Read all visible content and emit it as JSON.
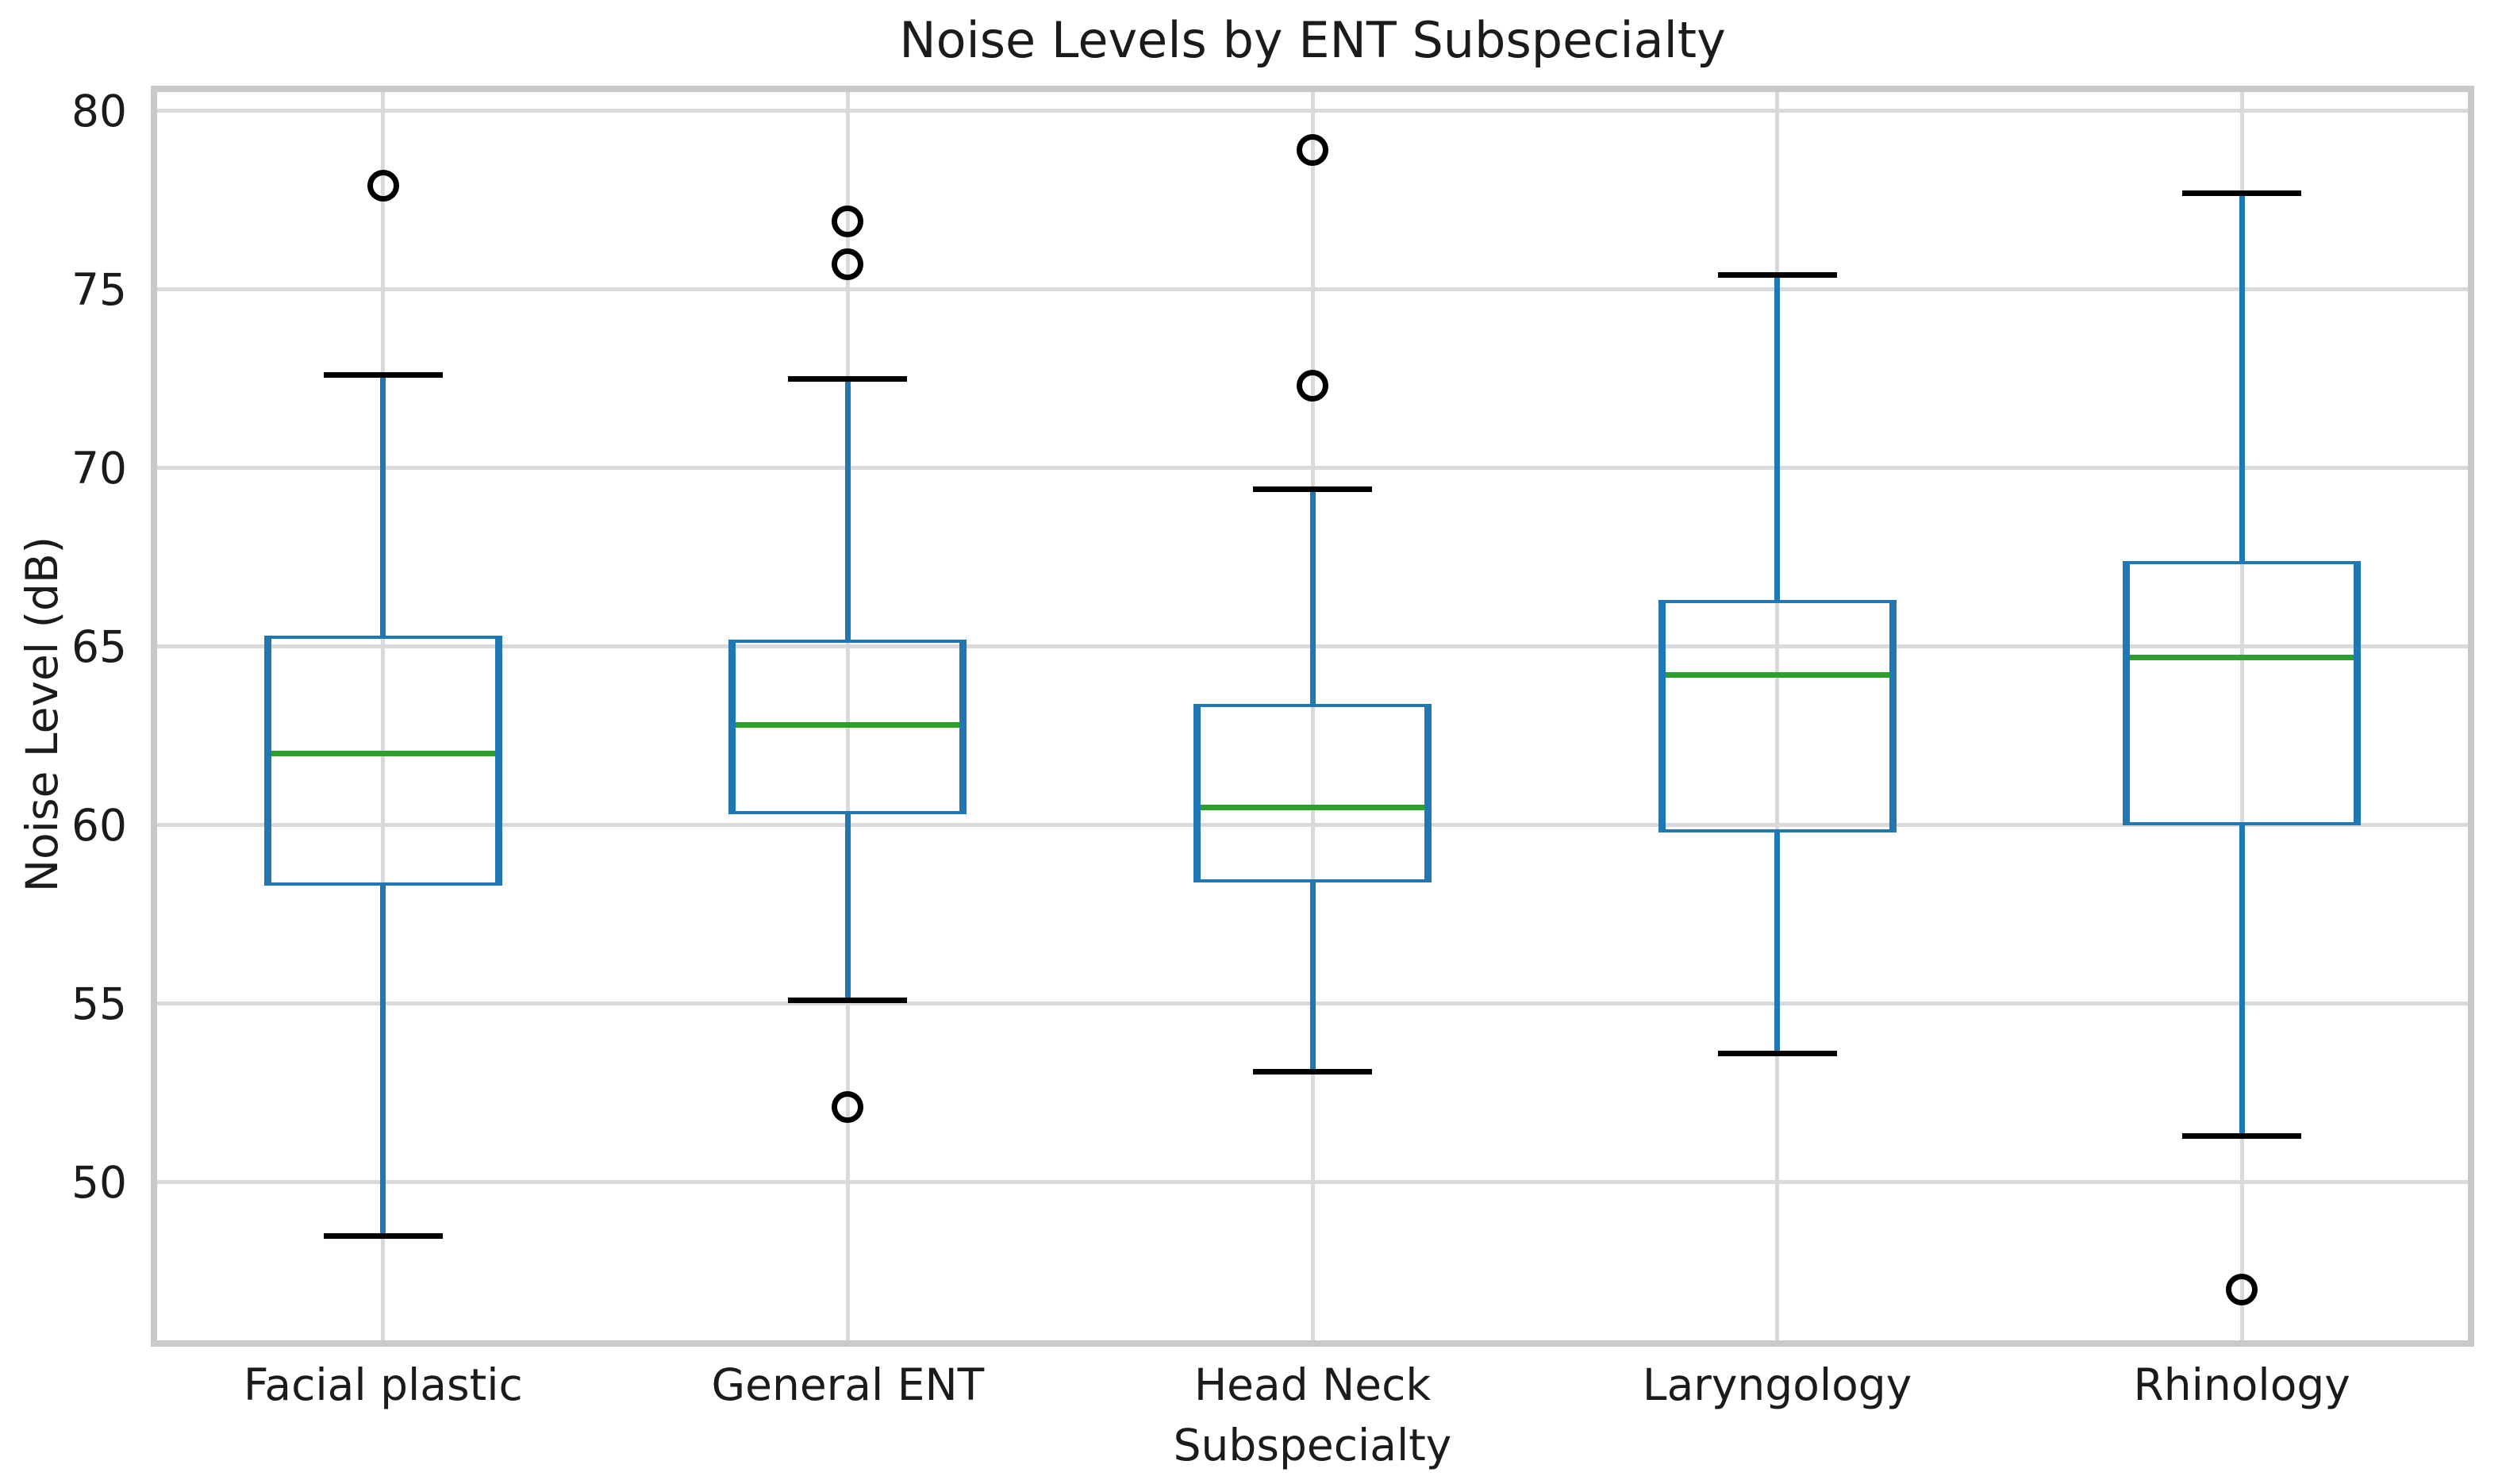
{
  "title": "Noise Levels by ENT Subspecialty",
  "x_axis_label": "Subspecialty",
  "y_axis_label": "Noise Level (dB)",
  "colors": {
    "box_edge": "#1f77b4",
    "whisker": "#1f77b4",
    "cap": "#000000",
    "median": "#2ca02c",
    "outlier_edge": "#000000",
    "grid": "#d9d9d9",
    "spine": "#c9c9c9",
    "text": "#1b1b1b",
    "background": "#ffffff"
  },
  "chart_data": {
    "type": "boxplot",
    "title": "Noise Levels by ENT Subspecialty",
    "xlabel": "Subspecialty",
    "ylabel": "Noise Level (dB)",
    "categories": [
      "Facial plastic",
      "General ENT",
      "Head Neck",
      "Laryngology",
      "Rhinology"
    ],
    "y_ticks": [
      80,
      75,
      70,
      65,
      60,
      55,
      50
    ],
    "ylim": [
      45.4,
      80.7
    ],
    "grid": true,
    "legend": false,
    "series": [
      {
        "name": "Facial plastic",
        "whisker_low": 48.5,
        "q1": 58.3,
        "median": 62.0,
        "q3": 65.3,
        "whisker_high": 72.6,
        "outliers": [
          77.9
        ]
      },
      {
        "name": "General ENT",
        "whisker_low": 55.1,
        "q1": 60.3,
        "median": 62.8,
        "q3": 65.2,
        "whisker_high": 72.5,
        "outliers": [
          52.1,
          75.7,
          76.9
        ]
      },
      {
        "name": "Head Neck",
        "whisker_low": 53.1,
        "q1": 58.4,
        "median": 60.5,
        "q3": 63.4,
        "whisker_high": 69.4,
        "outliers": [
          72.3,
          78.9
        ]
      },
      {
        "name": "Laryngology",
        "whisker_low": 53.6,
        "q1": 59.8,
        "median": 64.2,
        "q3": 66.3,
        "whisker_high": 75.4,
        "outliers": []
      },
      {
        "name": "Rhinology",
        "whisker_low": 51.3,
        "q1": 60.0,
        "median": 64.7,
        "q3": 67.4,
        "whisker_high": 77.7,
        "outliers": [
          47.0
        ]
      }
    ]
  }
}
